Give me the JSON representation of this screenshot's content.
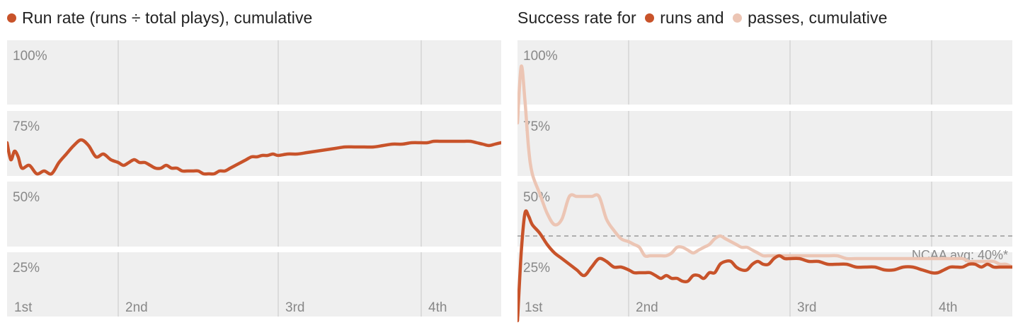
{
  "colors": {
    "runs": "#c8532a",
    "passes": "#ecc5b4",
    "band": "#efefef",
    "grid": "#d4d4d4",
    "avg_line": "#999999"
  },
  "chart_data": [
    {
      "type": "line",
      "title": "Run rate (runs ÷ total plays), cumulative",
      "title_parts": [
        {
          "dot": "runs",
          "text": "Run rate (runs ÷ total plays), cumulative"
        }
      ],
      "x_ticks": [
        "1st",
        "2nd",
        "3rd",
        "4th"
      ],
      "x_tick_values": [
        0,
        15,
        45,
        60
      ],
      "xlim": [
        0,
        73
      ],
      "y_ticks": [
        "100%",
        "75%",
        "50%",
        "25%"
      ],
      "y_tick_values": [
        100,
        75,
        50,
        25
      ],
      "ylim": [
        20,
        100
      ],
      "grid": true,
      "series": [
        {
          "color_key": "runs",
          "x": [
            0,
            0.5,
            1,
            1.5,
            2,
            3,
            4,
            5,
            6,
            7,
            8,
            9,
            10,
            11,
            12,
            13,
            14,
            15,
            16,
            17,
            18,
            19,
            20,
            21,
            22,
            23,
            24,
            25,
            26,
            27,
            28,
            29,
            30,
            31,
            32,
            33,
            34,
            35,
            36,
            37,
            38,
            39,
            40,
            41,
            42,
            43,
            44,
            45,
            46,
            47,
            48,
            49,
            50,
            51,
            52,
            53,
            54,
            55,
            56,
            57,
            58,
            59,
            60,
            61,
            62,
            63,
            64,
            65,
            66,
            67,
            68,
            69,
            70,
            71,
            72,
            73
          ],
          "values": [
            73,
            67,
            70,
            68,
            64,
            65,
            62,
            63,
            62,
            66,
            69,
            72,
            74,
            72,
            68,
            69,
            67,
            66,
            65,
            66,
            67,
            66,
            66,
            65,
            64,
            64,
            65,
            64,
            64,
            63,
            63,
            63,
            63,
            62,
            62,
            62,
            63,
            63,
            64,
            65,
            66,
            67,
            68,
            68,
            68.5,
            68.5,
            69,
            68.5,
            69,
            69,
            69.5,
            70,
            70.5,
            71,
            71.5,
            71.5,
            71.5,
            71.5,
            72,
            72.5,
            72.5,
            73,
            73,
            73,
            73.5,
            73.5,
            73.5,
            73.5,
            73.5,
            73.5,
            73.5,
            73,
            72.5,
            72,
            72.5,
            73
          ]
        }
      ]
    },
    {
      "type": "line",
      "title": "Success rate for runs and passes, cumulative",
      "title_parts": [
        {
          "dot": null,
          "text": "Success rate for"
        },
        {
          "dot": "runs",
          "text": "runs and"
        },
        {
          "dot": "passes",
          "text": "passes, cumulative"
        }
      ],
      "x_ticks": [
        "1st",
        "2nd",
        "3rd",
        "4th"
      ],
      "x_tick_values": [
        0,
        15,
        45,
        60
      ],
      "xlim": [
        0,
        73
      ],
      "y_ticks": [
        "100%",
        "75%",
        "50%",
        "25%"
      ],
      "y_tick_values": [
        100,
        75,
        50,
        25
      ],
      "ylim": [
        20,
        100
      ],
      "grid": true,
      "reference_line": {
        "value": 40,
        "label": "NCAA avg: 40%*"
      },
      "series": [
        {
          "color_key": "runs",
          "x": [
            0,
            0.5,
            1,
            1.5,
            2,
            3,
            4,
            5,
            6,
            7,
            8,
            9,
            10,
            11,
            12,
            13,
            14,
            15,
            16,
            17,
            18,
            19,
            20,
            21,
            22,
            23,
            24,
            25,
            26,
            27,
            28,
            29,
            30,
            31,
            32,
            33,
            34,
            35,
            36,
            37,
            38,
            39,
            40,
            41,
            42,
            43,
            44,
            45,
            46,
            47,
            48,
            49,
            50,
            51,
            52,
            53,
            54,
            55,
            56,
            57,
            58,
            59,
            60,
            61,
            62,
            63,
            64,
            65,
            66,
            67,
            68,
            69,
            70,
            71,
            72,
            73
          ],
          "values": [
            10,
            34,
            48,
            47,
            44,
            41,
            37,
            34,
            32,
            30,
            28,
            26,
            29,
            32,
            31,
            29,
            29,
            28,
            27,
            27,
            27,
            27,
            26,
            25,
            26,
            25,
            25,
            24,
            24,
            26,
            26,
            25,
            27,
            27,
            30,
            31,
            31,
            29,
            28,
            28,
            30,
            31,
            30,
            30,
            32,
            33,
            32,
            32,
            32,
            31,
            31,
            30,
            30,
            30,
            29,
            29,
            29,
            28,
            28,
            29,
            29,
            28,
            27,
            27,
            28,
            29,
            29,
            29,
            30,
            30,
            29,
            30,
            29,
            29,
            29,
            29
          ]
        },
        {
          "color_key": "passes",
          "x": [
            0,
            0.5,
            1,
            1.5,
            2,
            3,
            4,
            5,
            6,
            7,
            8,
            9,
            10,
            11,
            12,
            13,
            14,
            15,
            16,
            17,
            18,
            19,
            20,
            21,
            22,
            23,
            24,
            25,
            26,
            27,
            28,
            29,
            30,
            31,
            32,
            33,
            34,
            35,
            36,
            37,
            38,
            39,
            40,
            41,
            42,
            43,
            44,
            45,
            46,
            47,
            48,
            49,
            50,
            51,
            52,
            53,
            54,
            55,
            56,
            57,
            58,
            59,
            60,
            61,
            62,
            63,
            64,
            65,
            66,
            67,
            68,
            69,
            70,
            71,
            72,
            73
          ],
          "values": [
            80,
            100,
            88,
            71,
            62,
            55,
            48,
            44,
            46,
            54,
            54,
            54,
            54,
            54,
            46,
            42,
            39,
            38,
            37,
            36,
            33,
            33,
            33,
            33,
            33,
            34,
            36,
            36,
            35,
            34,
            35,
            36,
            37,
            39,
            40,
            39,
            38,
            37,
            36,
            36,
            35,
            34,
            33,
            33,
            33,
            33,
            33,
            33,
            33,
            33,
            33,
            33,
            33,
            32,
            32,
            32,
            32,
            32,
            32,
            32,
            32,
            32,
            32,
            32,
            32,
            32,
            32,
            32,
            31,
            31,
            31,
            31,
            31,
            30,
            30,
            29
          ]
        }
      ]
    }
  ]
}
